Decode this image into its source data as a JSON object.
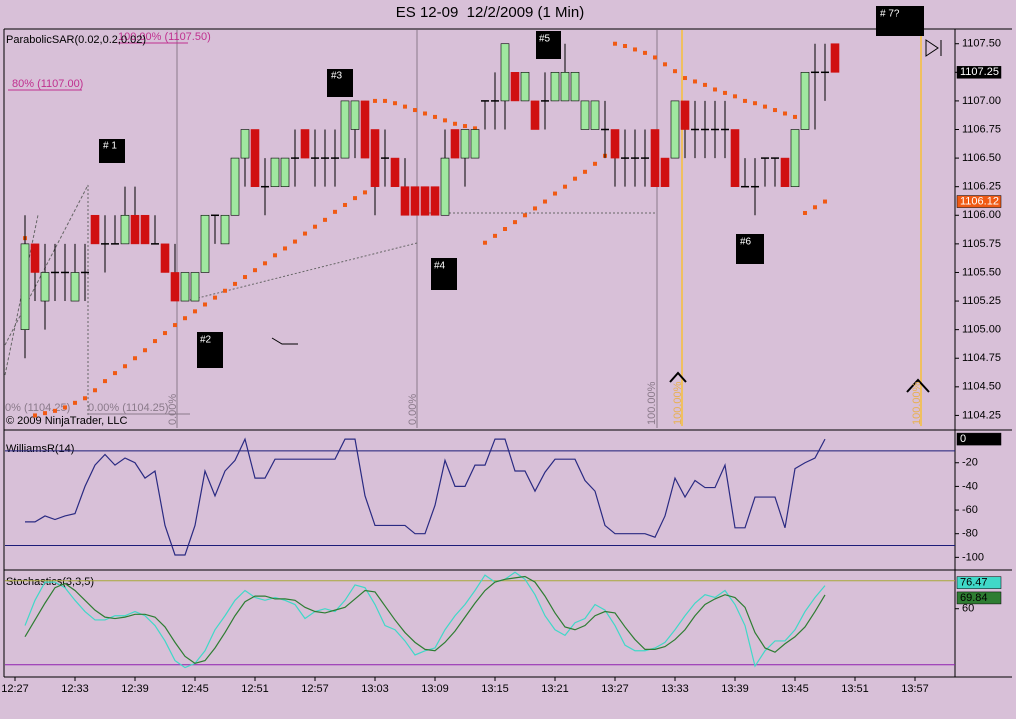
{
  "chart_data": {
    "type": "candlestick",
    "title": "ES 12-09  12/2/2009 (1 Min)",
    "x": [
      "12:28",
      "12:29",
      "12:30",
      "12:31",
      "12:32",
      "12:33",
      "12:34",
      "12:35",
      "12:36",
      "12:37",
      "12:38",
      "12:39",
      "12:40",
      "12:41",
      "12:42",
      "12:43",
      "12:44",
      "12:45",
      "12:46",
      "12:47",
      "12:48",
      "12:49",
      "12:50",
      "12:51",
      "12:52",
      "12:53",
      "12:54",
      "12:55",
      "12:56",
      "12:57",
      "12:58",
      "12:59",
      "13:00",
      "13:01",
      "13:02",
      "13:03",
      "13:04",
      "13:05",
      "13:06",
      "13:07",
      "13:08",
      "13:09",
      "13:10",
      "13:11",
      "13:12",
      "13:13",
      "13:14",
      "13:15",
      "13:16",
      "13:17",
      "13:18",
      "13:19",
      "13:20",
      "13:21",
      "13:22",
      "13:23",
      "13:24",
      "13:25",
      "13:26",
      "13:27",
      "13:28",
      "13:29",
      "13:30",
      "13:31",
      "13:32",
      "13:33",
      "13:34",
      "13:35",
      "13:36",
      "13:37",
      "13:38",
      "13:39",
      "13:40",
      "13:41",
      "13:42",
      "13:43",
      "13:44",
      "13:45",
      "13:46",
      "13:47",
      "13:48",
      "13:49"
    ],
    "xlim": [
      "12:26",
      "14:01"
    ],
    "xticks": [
      "12:27",
      "12:33",
      "12:39",
      "12:45",
      "12:51",
      "12:57",
      "13:03",
      "13:09",
      "13:15",
      "13:21",
      "13:27",
      "13:33",
      "13:39",
      "13:45",
      "13:51",
      "13:57"
    ],
    "panels": [
      {
        "type": "candlestick",
        "ylim": [
          1104.14,
          1107.62
        ],
        "yticks": [
          1104.25,
          {
            "value": 1104.5,
            "label": "1104.50"
          },
          1104.75,
          {
            "value": 1105,
            "label": "1105.00"
          },
          1105.25,
          {
            "value": 1105.5,
            "label": "1105.50"
          },
          1105.75,
          {
            "value": 1106,
            "label": "1106.00"
          },
          1106.25,
          {
            "value": 1106.5,
            "label": "1106.50"
          },
          1106.75,
          {
            "value": 1107,
            "label": "1107.00"
          },
          1107.25,
          {
            "value": 1107.5,
            "label": "1107.50"
          }
        ],
        "up_color": "#a0e8a0",
        "down_color": "#d01010",
        "wick_color": "#000000",
        "ohlc": [
          [
            1105.0,
            1106.0,
            1104.75,
            1105.75
          ],
          [
            1105.75,
            1105.75,
            1105.25,
            1105.5
          ],
          [
            1105.25,
            1105.75,
            1105.0,
            1105.5
          ],
          [
            1105.5,
            1105.75,
            1105.25,
            1105.5
          ],
          [
            1105.5,
            1105.75,
            1105.25,
            1105.5
          ],
          [
            1105.25,
            1105.75,
            1105.25,
            1105.5
          ],
          [
            1105.5,
            1105.75,
            1105.25,
            1105.5
          ],
          [
            1106.0,
            1106.0,
            1105.75,
            1105.75
          ],
          [
            1105.75,
            1106.0,
            1105.5,
            1105.75
          ],
          [
            1105.75,
            1106.0,
            1105.75,
            1105.75
          ],
          [
            1105.75,
            1106.25,
            1105.75,
            1106.0
          ],
          [
            1106.0,
            1106.25,
            1105.75,
            1105.75
          ],
          [
            1106.0,
            1106.0,
            1105.75,
            1105.75
          ],
          [
            1105.75,
            1106.0,
            1105.75,
            1105.75
          ],
          [
            1105.75,
            1105.75,
            1105.5,
            1105.5
          ],
          [
            1105.5,
            1105.75,
            1105.25,
            1105.25
          ],
          [
            1105.25,
            1105.5,
            1105.25,
            1105.5
          ],
          [
            1105.25,
            1105.5,
            1105.25,
            1105.5
          ],
          [
            1105.5,
            1106.0,
            1105.5,
            1106.0
          ],
          [
            1106.0,
            1106.0,
            1105.75,
            1106.0
          ],
          [
            1105.75,
            1106.0,
            1105.75,
            1106.0
          ],
          [
            1106.0,
            1106.5,
            1106.0,
            1106.5
          ],
          [
            1106.5,
            1106.75,
            1106.25,
            1106.75
          ],
          [
            1106.75,
            1106.75,
            1106.25,
            1106.25
          ],
          [
            1106.25,
            1106.5,
            1106.0,
            1106.25
          ],
          [
            1106.25,
            1106.5,
            1106.25,
            1106.5
          ],
          [
            1106.25,
            1106.5,
            1106.25,
            1106.5
          ],
          [
            1106.5,
            1106.75,
            1106.25,
            1106.5
          ],
          [
            1106.75,
            1106.75,
            1106.5,
            1106.5
          ],
          [
            1106.5,
            1106.75,
            1106.25,
            1106.5
          ],
          [
            1106.5,
            1106.75,
            1106.25,
            1106.5
          ],
          [
            1106.5,
            1106.75,
            1106.25,
            1106.5
          ],
          [
            1106.5,
            1107.0,
            1106.5,
            1107.0
          ],
          [
            1106.75,
            1107.0,
            1106.5,
            1107.0
          ],
          [
            1107.0,
            1107.0,
            1106.5,
            1106.5
          ],
          [
            1106.75,
            1106.75,
            1106.0,
            1106.25
          ],
          [
            1106.5,
            1106.75,
            1106.25,
            1106.5
          ],
          [
            1106.5,
            1106.5,
            1106.25,
            1106.25
          ],
          [
            1106.25,
            1106.5,
            1106.0,
            1106.0
          ],
          [
            1106.25,
            1106.25,
            1106.0,
            1106.0
          ],
          [
            1106.25,
            1106.25,
            1106.0,
            1106.0
          ],
          [
            1106.25,
            1106.25,
            1106.0,
            1106.0
          ],
          [
            1106.0,
            1106.75,
            1106.0,
            1106.5
          ],
          [
            1106.75,
            1106.75,
            1106.5,
            1106.5
          ],
          [
            1106.5,
            1106.75,
            1106.25,
            1106.75
          ],
          [
            1106.5,
            1106.75,
            1106.5,
            1106.75
          ],
          [
            1107.0,
            1107.0,
            1106.75,
            1107.0
          ],
          [
            1107.0,
            1107.25,
            1106.75,
            1107.0
          ],
          [
            1107.0,
            1107.5,
            1106.75,
            1107.5
          ],
          [
            1107.25,
            1107.25,
            1107.0,
            1107.0
          ],
          [
            1107.0,
            1107.25,
            1107.0,
            1107.25
          ],
          [
            1107.0,
            1107.0,
            1106.75,
            1106.75
          ],
          [
            1107.0,
            1107.25,
            1106.75,
            1107.0
          ],
          [
            1107.0,
            1107.25,
            1107.0,
            1107.25
          ],
          [
            1107.0,
            1107.5,
            1107.0,
            1107.25
          ],
          [
            1107.0,
            1107.25,
            1107.0,
            1107.25
          ],
          [
            1106.75,
            1107.0,
            1106.75,
            1107.0
          ],
          [
            1106.75,
            1107.0,
            1106.75,
            1107.0
          ],
          [
            1106.75,
            1107.0,
            1106.5,
            1106.75
          ],
          [
            1106.75,
            1106.75,
            1106.25,
            1106.5
          ],
          [
            1106.5,
            1106.75,
            1106.25,
            1106.5
          ],
          [
            1106.5,
            1106.75,
            1106.25,
            1106.5
          ],
          [
            1106.5,
            1106.75,
            1106.25,
            1106.5
          ],
          [
            1106.75,
            1106.75,
            1106.25,
            1106.25
          ],
          [
            1106.5,
            1106.5,
            1106.25,
            1106.25
          ],
          [
            1106.5,
            1107.0,
            1106.5,
            1107.0
          ],
          [
            1107.0,
            1107.0,
            1106.5,
            1106.75
          ],
          [
            1106.75,
            1107.0,
            1106.5,
            1106.75
          ],
          [
            1106.75,
            1107.0,
            1106.5,
            1106.75
          ],
          [
            1106.75,
            1107.0,
            1106.5,
            1106.75
          ],
          [
            1106.75,
            1107.0,
            1106.5,
            1106.75
          ],
          [
            1106.75,
            1106.75,
            1106.25,
            1106.25
          ],
          [
            1106.25,
            1106.5,
            1106.25,
            1106.25
          ],
          [
            1106.25,
            1106.5,
            1106.0,
            1106.25
          ],
          [
            1106.5,
            1106.5,
            1106.25,
            1106.5
          ],
          [
            1106.5,
            1106.5,
            1106.25,
            1106.5
          ],
          [
            1106.5,
            1106.5,
            1106.25,
            1106.25
          ],
          [
            1106.25,
            1106.75,
            1106.25,
            1106.75
          ],
          [
            1106.75,
            1107.25,
            1106.75,
            1107.25
          ],
          [
            1107.25,
            1107.5,
            1106.75,
            1107.25
          ],
          [
            1107.25,
            1107.5,
            1107.0,
            1107.25
          ],
          [
            1107.5,
            1107.5,
            1107.25,
            1107.25
          ]
        ],
        "overlays": [
          {
            "name": "ParabolicSAR(0.02,0.2,0.02)",
            "type": "scatter",
            "color": "#f05a14",
            "values": [
              1105.8,
              1104.25,
              1104.27,
              1104.29,
              1104.32,
              1104.36,
              1104.4,
              1104.47,
              1104.55,
              1104.62,
              1104.68,
              1104.75,
              1104.82,
              1104.9,
              1104.97,
              1105.04,
              1105.1,
              1105.16,
              1105.22,
              1105.28,
              1105.34,
              1105.4,
              1105.46,
              1105.52,
              1105.58,
              1105.65,
              1105.71,
              1105.77,
              1105.84,
              1105.9,
              1105.96,
              1106.03,
              1106.09,
              1106.15,
              1106.2,
              1107.0,
              1107.0,
              1106.98,
              1106.95,
              1106.92,
              1106.89,
              1106.86,
              1106.83,
              1106.8,
              1106.78,
              1106.76,
              1105.76,
              1105.82,
              1105.88,
              1105.94,
              1106.0,
              1106.06,
              1106.12,
              1106.19,
              1106.25,
              1106.32,
              1106.38,
              1106.45,
              1106.52,
              1107.5,
              1107.48,
              1107.45,
              1107.42,
              1107.38,
              1107.32,
              1107.26,
              1107.2,
              1107.17,
              1107.14,
              1107.1,
              1107.07,
              1107.04,
              1107.0,
              1106.98,
              1106.95,
              1106.92,
              1106.89,
              1106.86,
              1106.02,
              1106.07,
              1106.12,
              null
            ]
          }
        ]
      },
      {
        "type": "line",
        "ylim": [
          -109,
          6
        ],
        "yticks": [
          -20,
          -40,
          -60,
          -80,
          -100
        ],
        "levels": [
          -10,
          -90
        ],
        "level_color": "#1c1c78",
        "series": [
          {
            "name": "WilliamsR(14)",
            "color": "#2a2a82",
            "values": [
              -70,
              -70,
              -65,
              -68,
              -65,
              -63,
              -40,
              -22,
              -13,
              -22,
              -16,
              -20,
              -33,
              -27,
              -73,
              -98,
              -98,
              -73,
              -27,
              -48,
              -27,
              -18,
              0,
              -33,
              -33,
              -17,
              -17,
              -17,
              -17,
              -17,
              -17,
              -17,
              0,
              0,
              -48,
              -73,
              -73,
              -73,
              -73,
              -80,
              -80,
              -56,
              -18,
              -40,
              -40,
              -22,
              -22,
              0,
              0,
              -27,
              -27,
              -44,
              -28,
              -17,
              -17,
              -17,
              -35,
              -44,
              -73,
              -80,
              -80,
              -80,
              -80,
              -83,
              -65,
              -33,
              -49,
              -35,
              -41,
              -41,
              -22,
              -75,
              -75,
              -49,
              -49,
              -49,
              -75,
              -25,
              -20,
              -16,
              0,
              null
            ]
          }
        ]
      },
      {
        "type": "line",
        "title": "Stochastics(3,3,5)",
        "ylim": [
          12,
          86.2
        ],
        "yticks": [
          60
        ],
        "levels": [
          80,
          20
        ],
        "level_colors": [
          "#a8a838",
          "#9020b0"
        ],
        "series": [
          {
            "color": "#40d8c8",
            "values": [
              48,
              66,
              79,
              79,
              75,
              66,
              58,
              52,
              52,
              55,
              55,
              58,
              55,
              48,
              37,
              23,
              18,
              21,
              30,
              45,
              55,
              66,
              73,
              68,
              66,
              68,
              66,
              63,
              53,
              58,
              60,
              58,
              66,
              77,
              75,
              63,
              48,
              45,
              37,
              27,
              30,
              32,
              45,
              55,
              63,
              73,
              84,
              79,
              81,
              86,
              81,
              70,
              55,
              45,
              41,
              50,
              53,
              63,
              59,
              48,
              34,
              30,
              30,
              32,
              36,
              45,
              55,
              64,
              70,
              68,
              73,
              63,
              48,
              19,
              30,
              37,
              37,
              45,
              58,
              68,
              76.47,
              null
            ]
          },
          {
            "color": "#2e7d32",
            "values": [
              40,
              52,
              64,
              75,
              78,
              73,
              66,
              59,
              54,
              53,
              54,
              56,
              56,
              54,
              47,
              36,
              26,
              21,
              23,
              32,
              43,
              55,
              65,
              69,
              69,
              67,
              67,
              66,
              61,
              58,
              57,
              59,
              61,
              67,
              73,
              72,
              62,
              52,
              43,
              36,
              31,
              30,
              36,
              44,
              54,
              64,
              73,
              79,
              81,
              82,
              83,
              79,
              69,
              57,
              47,
              45,
              48,
              55,
              58,
              57,
              47,
              38,
              31,
              31,
              33,
              38,
              45,
              55,
              63,
              67,
              70,
              68,
              61,
              43,
              32,
              29,
              35,
              40,
              47,
              58,
              69.84,
              null
            ]
          }
        ]
      }
    ]
  },
  "annotations": [
    "# 1",
    "#2",
    "#3",
    "#4",
    "#5",
    "#6",
    "# 7?"
  ],
  "fib_labels": [
    "100.00% (1107.50)",
    "80% (1107.00)",
    "0% (1104.25)",
    "0.00% (1104.25)",
    "0.00%",
    "0.00%",
    "100.00%",
    "100.00%",
    "100.00%"
  ],
  "copyright": "© 2009 NinjaTrader, LLC"
}
